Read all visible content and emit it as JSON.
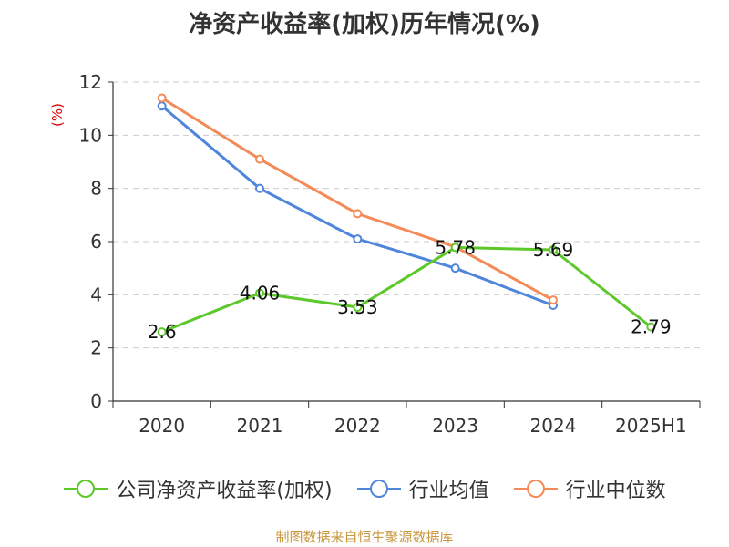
{
  "chart_data": {
    "type": "line",
    "title": "净资产收益率(加权)历年情况(%)",
    "ylabel": "(%)",
    "xlabel": "",
    "categories": [
      "2020",
      "2021",
      "2022",
      "2023",
      "2024",
      "2025H1"
    ],
    "ylim": [
      0,
      12
    ],
    "yticks": [
      0,
      2,
      4,
      6,
      8,
      10,
      12
    ],
    "grid": true,
    "legend_position": "bottom",
    "series": [
      {
        "name": "公司净资产收益率(加权)",
        "color": "#5cc82a",
        "values": [
          2.6,
          4.06,
          3.53,
          5.78,
          5.69,
          2.79
        ],
        "labels": [
          "2.6",
          "4.06",
          "3.53",
          "5.78",
          "5.69",
          "2.79"
        ]
      },
      {
        "name": "行业均值",
        "color": "#4f86dc",
        "values": [
          11.1,
          8.0,
          6.1,
          5.0,
          3.6,
          null
        ]
      },
      {
        "name": "行业中位数",
        "color": "#f38a57",
        "values": [
          11.4,
          9.1,
          7.05,
          5.8,
          3.8,
          null
        ]
      }
    ]
  },
  "source": "制图数据来自恒生聚源数据库"
}
